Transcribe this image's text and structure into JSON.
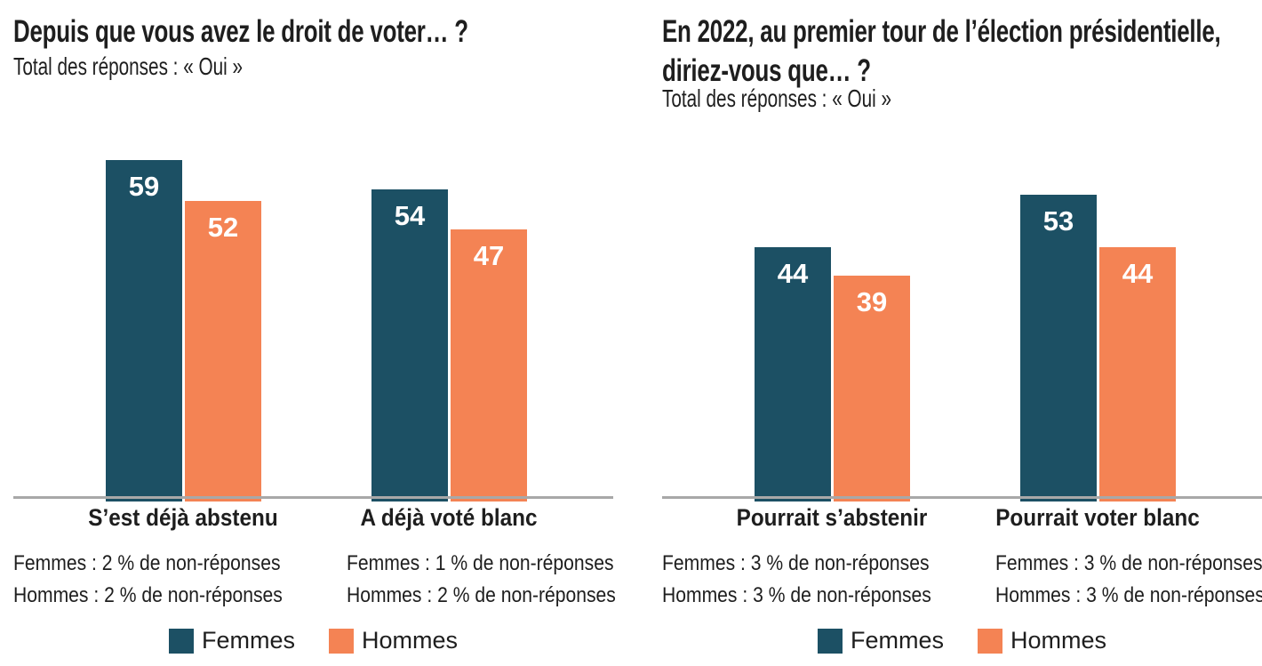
{
  "page": {
    "background": "#ffffff"
  },
  "colors": {
    "femmes": "#1c5064",
    "hommes": "#f48354",
    "axis_line": "#a8a8a8",
    "text": "#1e1e1e",
    "value_label": "#ffffff"
  },
  "chart_data": [
    {
      "type": "bar",
      "title": "Depuis que vous avez le droit de voter… ?",
      "title_lines": [
        "Depuis que vous avez le droit de voter… ?"
      ],
      "subtitle": "Total des réponses : « Oui »",
      "categories": [
        "S’est déjà abstenu",
        "A déjà voté blanc"
      ],
      "series": [
        {
          "name": "Femmes",
          "color": "#1c5064",
          "values": [
            59,
            54
          ]
        },
        {
          "name": "Hommes",
          "color": "#f48354",
          "values": [
            52,
            47
          ]
        }
      ],
      "footnotes": [
        [
          "Femmes : 2 % de non-réponses",
          "Hommes : 2 % de non-réponses"
        ],
        [
          "Femmes : 1 % de non-réponses",
          "Hommes : 2 % de non-réponses"
        ]
      ],
      "value_labels": "inside-top",
      "ylim": [
        0,
        62
      ],
      "grid": false,
      "legend_position": "bottom"
    },
    {
      "type": "bar",
      "title": "En 2022, au premier tour de l’élection présidentielle, diriez-vous que… ?",
      "title_lines": [
        "En 2022, au premier tour de l’élection présidentielle,",
        "diriez-vous que… ?"
      ],
      "subtitle": "Total des réponses : « Oui »",
      "categories": [
        "Pourrait s’abstenir",
        "Pourrait voter blanc"
      ],
      "series": [
        {
          "name": "Femmes",
          "color": "#1c5064",
          "values": [
            44,
            53
          ]
        },
        {
          "name": "Hommes",
          "color": "#f48354",
          "values": [
            39,
            44
          ]
        }
      ],
      "footnotes": [
        [
          "Femmes : 3 % de non-réponses",
          "Hommes : 3 % de non-réponses"
        ],
        [
          "Femmes : 3 % de non-réponses",
          "Hommes : 3 % de non-réponses"
        ]
      ],
      "value_labels": "inside-top",
      "ylim": [
        0,
        62
      ],
      "grid": false,
      "legend_position": "bottom"
    }
  ]
}
